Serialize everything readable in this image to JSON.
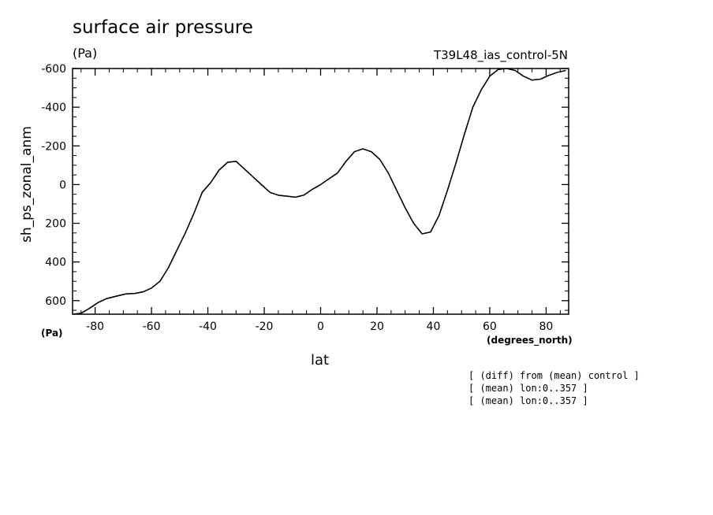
{
  "header": {
    "title": "surface air pressure",
    "units": "(Pa)",
    "run_label": "T39L48_ias_control-5N"
  },
  "axes": {
    "ylabel": "sh_ps_zonal_anm",
    "xlabel": "lat",
    "y_units": "(Pa)",
    "x_units": "(degrees_north)"
  },
  "notes": [
    "[ (diff) from (mean) control ]",
    "[ (mean) lon:0..357 ]",
    "[ (mean) lon:0..357 ]"
  ],
  "chart_data": {
    "type": "line",
    "title": "surface air pressure",
    "xlabel": "lat",
    "ylabel": "sh_ps_zonal_anm",
    "xlim": [
      -88,
      88
    ],
    "ylim": [
      -600,
      670
    ],
    "y_inverted": true,
    "x_ticks": [
      -80,
      -60,
      -40,
      -20,
      0,
      20,
      40,
      60,
      80
    ],
    "x_tick_labels": [
      "-80",
      "-60",
      "-40",
      "-20",
      "0",
      "20",
      "40",
      "60",
      "80"
    ],
    "y_ticks": [
      -600,
      -400,
      -200,
      0,
      200,
      400,
      600
    ],
    "y_tick_labels": [
      "-600",
      "-400",
      "-200",
      "0",
      "200",
      "400",
      "600"
    ],
    "grid": false,
    "series": [
      {
        "color": "#000000",
        "x": [
          -88,
          -85,
          -82,
          -79,
          -76,
          -72,
          -69,
          -66,
          -63,
          -60,
          -57,
          -54,
          -51,
          -48,
          -45,
          -42,
          -39,
          -36,
          -33,
          -30,
          -27,
          -24,
          -21,
          -18,
          -15,
          -12,
          -9,
          -6,
          -3,
          0,
          3,
          6,
          9,
          12,
          15,
          18,
          21,
          24,
          27,
          30,
          33,
          36,
          39,
          42,
          45,
          48,
          51,
          54,
          57,
          60,
          63,
          66,
          69,
          72,
          75,
          78,
          81,
          84,
          87
        ],
        "y": [
          670,
          665,
          640,
          610,
          590,
          575,
          565,
          563,
          555,
          535,
          500,
          430,
          340,
          250,
          150,
          40,
          -10,
          -75,
          -115,
          -120,
          -80,
          -40,
          0,
          40,
          55,
          60,
          65,
          55,
          25,
          0,
          -30,
          -60,
          -120,
          -170,
          -185,
          -170,
          -130,
          -60,
          30,
          120,
          200,
          255,
          245,
          160,
          30,
          -110,
          -260,
          -400,
          -490,
          -560,
          -595,
          -600,
          -590,
          -560,
          -540,
          -545,
          -565,
          -580,
          -590
        ]
      }
    ]
  }
}
